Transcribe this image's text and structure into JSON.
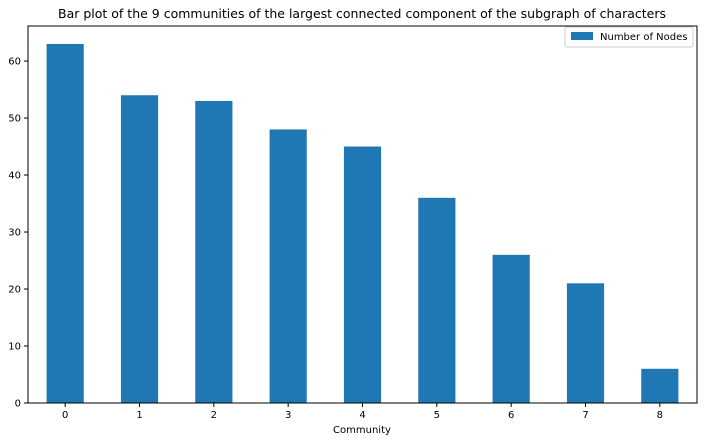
{
  "chart_data": {
    "type": "bar",
    "title": "Bar plot of the 9 communities of the largest connected component of the subgraph of characters",
    "xlabel": "Community",
    "ylabel": "",
    "categories": [
      "0",
      "1",
      "2",
      "3",
      "4",
      "5",
      "6",
      "7",
      "8"
    ],
    "series": [
      {
        "name": "Number of Nodes",
        "values": [
          63,
          54,
          53,
          48,
          45,
          36,
          26,
          21,
          6
        ],
        "color": "#1f77b4"
      }
    ],
    "ylim": [
      0,
      66.15
    ],
    "yticks": [
      0,
      10,
      20,
      30,
      40,
      50,
      60
    ],
    "grid": false,
    "legend_position": "upper-right"
  }
}
